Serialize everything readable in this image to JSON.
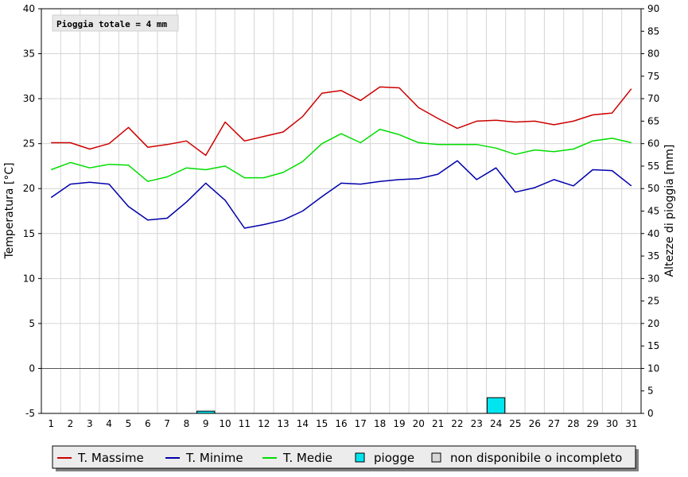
{
  "annotation": "Pioggia totale = 4 mm",
  "chart_data": {
    "type": "line",
    "x": [
      1,
      2,
      3,
      4,
      5,
      6,
      7,
      8,
      9,
      10,
      11,
      12,
      13,
      14,
      15,
      16,
      17,
      18,
      19,
      20,
      21,
      22,
      23,
      24,
      25,
      26,
      27,
      28,
      29,
      30,
      31
    ],
    "xticks": [
      "1",
      "2",
      "3",
      "4",
      "5",
      "6",
      "7",
      "8",
      "9",
      "10",
      "11",
      "12",
      "13",
      "14",
      "15",
      "16",
      "17",
      "18",
      "19",
      "20",
      "21",
      "22",
      "23",
      "24",
      "25",
      "26",
      "27",
      "28",
      "29",
      "30",
      "31"
    ],
    "ylabel": "Temperatura [°C]",
    "y2label": "Altezze di pioggia [mm]",
    "ylim": [
      -5,
      40
    ],
    "y2lim": [
      0,
      90
    ],
    "yticks": [
      "-5",
      "0",
      "5",
      "10",
      "15",
      "20",
      "25",
      "30",
      "35",
      "40"
    ],
    "y2ticks": [
      "0",
      "5",
      "10",
      "15",
      "20",
      "25",
      "30",
      "35",
      "40",
      "45",
      "50",
      "55",
      "60",
      "65",
      "70",
      "75",
      "80",
      "85",
      "90"
    ],
    "grid": true,
    "series": [
      {
        "name": "T. Massime",
        "color": "#cc0000",
        "values": [
          25.1,
          25.1,
          24.4,
          25.0,
          26.8,
          24.6,
          24.9,
          25.3,
          23.7,
          27.4,
          25.3,
          25.8,
          26.3,
          28.0,
          30.6,
          30.9,
          29.8,
          31.3,
          31.2,
          29.0,
          27.8,
          26.7,
          27.5,
          27.6,
          27.4,
          27.5,
          27.1,
          27.5,
          28.2,
          28.4,
          31.1
        ]
      },
      {
        "name": "T. Minime",
        "color": "#0000aa",
        "values": [
          19.0,
          20.5,
          20.7,
          20.5,
          18.0,
          16.5,
          16.7,
          18.5,
          20.6,
          18.7,
          15.6,
          16.0,
          16.5,
          17.5,
          19.1,
          20.6,
          20.5,
          20.8,
          21.0,
          21.1,
          21.6,
          23.1,
          21.0,
          22.3,
          19.6,
          20.1,
          21.0,
          20.3,
          22.1,
          22.0,
          20.3
        ]
      },
      {
        "name": "T. Medie",
        "color": "#00dd00",
        "values": [
          22.1,
          22.9,
          22.3,
          22.7,
          22.6,
          20.8,
          21.3,
          22.3,
          22.1,
          22.5,
          21.2,
          21.2,
          21.8,
          23.0,
          25.0,
          26.1,
          25.1,
          26.6,
          26.0,
          25.1,
          24.9,
          24.9,
          24.9,
          24.5,
          23.8,
          24.3,
          24.1,
          24.4,
          25.3,
          25.6,
          25.1
        ]
      }
    ],
    "rain": {
      "name": "piogge",
      "color": "#00e5ee",
      "days": [
        9,
        24
      ],
      "values_mm": [
        0.5,
        3.5
      ]
    },
    "legend": {
      "position": "bottom",
      "items": [
        {
          "label": "T. Massime",
          "kind": "line",
          "color": "#cc0000"
        },
        {
          "label": "T. Minime",
          "kind": "line",
          "color": "#0000aa"
        },
        {
          "label": "T. Medie",
          "kind": "line",
          "color": "#00dd00"
        },
        {
          "label": "piogge",
          "kind": "box",
          "color": "#00e5ee"
        },
        {
          "label": "non disponibile o incompleto",
          "kind": "box",
          "color": "#d8d8d8"
        }
      ]
    }
  }
}
